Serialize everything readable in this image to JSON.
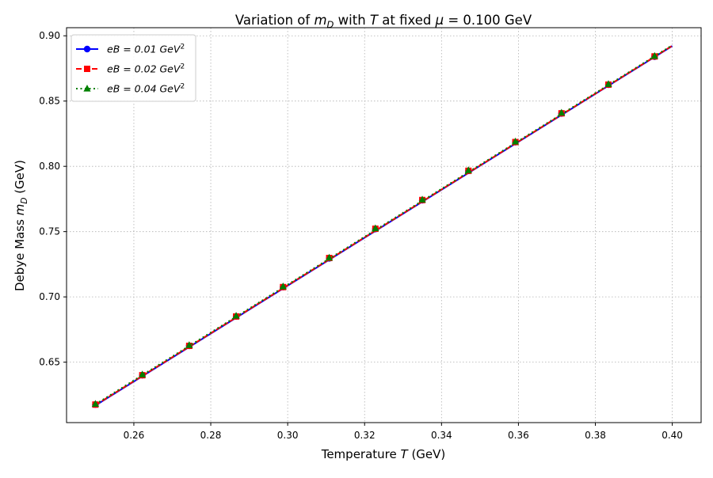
{
  "chart_data": {
    "type": "line",
    "title": {
      "prefix": "Variation of ",
      "m": "m",
      "m_sub": "D",
      "mid1": " with ",
      "T": "T",
      "mid2": " at fixed ",
      "mu": "μ",
      "suffix": " = 0.100 GeV"
    },
    "xlabel": {
      "text": "Temperature ",
      "var": "T",
      "unit": " (GeV)"
    },
    "ylabel": {
      "text": "Debye Mass ",
      "var": "m",
      "sub": "D",
      "unit": " (GeV)"
    },
    "xlim": [
      0.2425,
      0.4075
    ],
    "ylim": [
      0.6037,
      0.9062
    ],
    "xticks": [
      0.26,
      0.28,
      0.3,
      0.32,
      0.34,
      0.36,
      0.38,
      0.4
    ],
    "xtick_labels": [
      "0.26",
      "0.28",
      "0.30",
      "0.32",
      "0.34",
      "0.36",
      "0.38",
      "0.40"
    ],
    "yticks": [
      0.65,
      0.7,
      0.75,
      0.8,
      0.85,
      0.9
    ],
    "ytick_labels": [
      "0.65",
      "0.70",
      "0.75",
      "0.80",
      "0.85",
      "0.90"
    ],
    "grid": true,
    "legend_position": "upper-left",
    "x": [
      0.25,
      0.4
    ],
    "series": [
      {
        "name_prefix": "eB = 0.01 ",
        "name_unit": "GeV",
        "name_exp": "2",
        "color": "#0000ff",
        "marker": "circle",
        "linestyle": "solid",
        "y_line": [
          0.6168,
          0.8922
        ],
        "marker_x": [
          0.25,
          0.2622,
          0.2744,
          0.2866,
          0.2988,
          0.3108,
          0.3228,
          0.335,
          0.347,
          0.3592,
          0.3712,
          0.3834,
          0.3954
        ],
        "marker_y": [
          0.6175,
          0.64,
          0.6625,
          0.685,
          0.7075,
          0.7295,
          0.752,
          0.774,
          0.7965,
          0.8185,
          0.8405,
          0.8625,
          0.884
        ]
      },
      {
        "name_prefix": "eB = 0.02 ",
        "name_unit": "GeV",
        "name_exp": "2",
        "color": "#ff0000",
        "marker": "square",
        "linestyle": "dashed",
        "y_line": [
          0.6171,
          0.8924
        ],
        "marker_x": [
          0.25,
          0.2622,
          0.2744,
          0.2866,
          0.2988,
          0.3108,
          0.3228,
          0.335,
          0.347,
          0.3592,
          0.3712,
          0.3834,
          0.3954
        ],
        "marker_y": [
          0.6175,
          0.64,
          0.6625,
          0.685,
          0.7075,
          0.7298,
          0.7522,
          0.7742,
          0.7966,
          0.8186,
          0.8406,
          0.8626,
          0.8842
        ]
      },
      {
        "name_prefix": "eB = 0.04 ",
        "name_unit": "GeV",
        "name_exp": "2",
        "color": "#008000",
        "marker": "triangle",
        "linestyle": "dotted",
        "y_line": [
          0.6177,
          0.8928
        ],
        "marker_x": [
          0.25,
          0.2622,
          0.2744,
          0.2866,
          0.2988,
          0.3108,
          0.3228,
          0.335,
          0.347,
          0.3592,
          0.3712,
          0.3834,
          0.3954
        ],
        "marker_y": [
          0.618,
          0.6405,
          0.663,
          0.6855,
          0.708,
          0.73,
          0.7525,
          0.7745,
          0.797,
          0.819,
          0.841,
          0.863,
          0.8845
        ]
      }
    ]
  }
}
